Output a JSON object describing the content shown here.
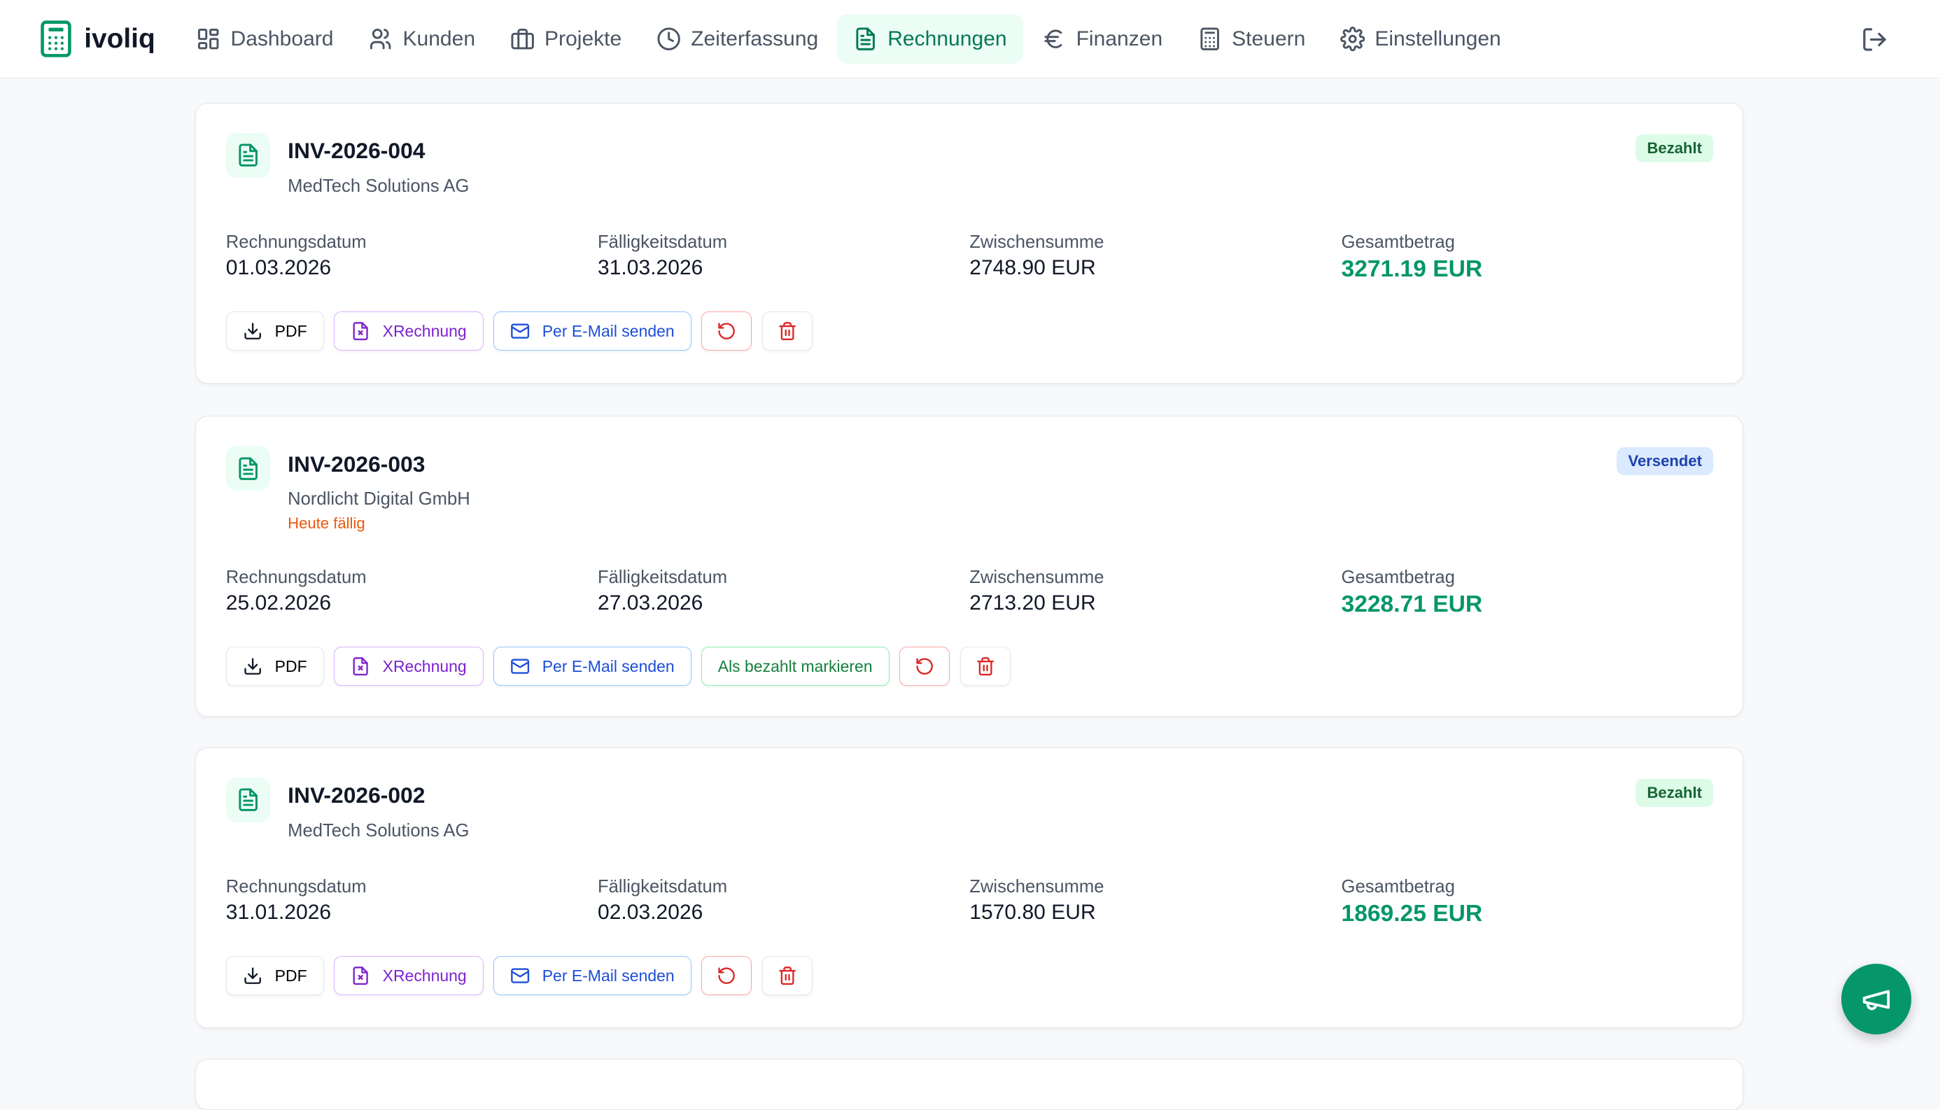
{
  "app": {
    "name": "ivoliq",
    "accent": "#059669"
  },
  "nav": [
    {
      "label": "Dashboard",
      "icon": "dashboard-icon"
    },
    {
      "label": "Kunden",
      "icon": "users-icon"
    },
    {
      "label": "Projekte",
      "icon": "briefcase-icon"
    },
    {
      "label": "Zeiterfassung",
      "icon": "clock-icon"
    },
    {
      "label": "Rechnungen",
      "icon": "file-text-icon",
      "active": true
    },
    {
      "label": "Finanzen",
      "icon": "euro-icon"
    },
    {
      "label": "Steuern",
      "icon": "calculator-icon"
    },
    {
      "label": "Einstellungen",
      "icon": "gear-icon"
    }
  ],
  "labels": {
    "invoice_date": "Rechnungsdatum",
    "due_date": "Fälligkeitsdatum",
    "subtotal": "Zwischensumme",
    "total": "Gesamtbetrag",
    "pdf": "PDF",
    "xrechnung": "XRechnung",
    "email": "Per E-Mail senden",
    "mark_paid": "Als bezahlt markieren"
  },
  "invoices": [
    {
      "number": "INV-2026-004",
      "client": "MedTech Solutions AG",
      "status": "Bezahlt",
      "invoice_date": "01.03.2026",
      "due_date": "31.03.2026",
      "subtotal": "2748.90 EUR",
      "total": "3271.19 EUR"
    },
    {
      "number": "INV-2026-003",
      "client": "Nordlicht Digital GmbH",
      "due_note": "Heute fällig",
      "status": "Versendet",
      "invoice_date": "25.02.2026",
      "due_date": "27.03.2026",
      "subtotal": "2713.20 EUR",
      "total": "3228.71 EUR"
    },
    {
      "number": "INV-2026-002",
      "client": "MedTech Solutions AG",
      "status": "Bezahlt",
      "invoice_date": "31.01.2026",
      "due_date": "02.03.2026",
      "subtotal": "1570.80 EUR",
      "total": "1869.25 EUR"
    }
  ]
}
